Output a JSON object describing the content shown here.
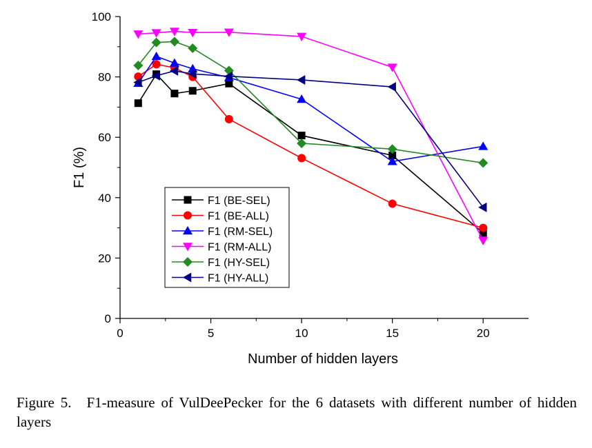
{
  "caption": {
    "label": "Figure 5.",
    "text": "F1-measure of VulDeePecker for the 6 datasets with different number of hidden layers"
  },
  "chart_data": {
    "type": "line",
    "xlabel": "Number of hidden layers",
    "ylabel": "F1 (%)",
    "xlim": [
      0,
      22.5
    ],
    "ylim": [
      0,
      100
    ],
    "xticks": [
      0,
      5,
      10,
      15,
      20
    ],
    "yticks": [
      0,
      20,
      40,
      60,
      80,
      100
    ],
    "x": [
      1,
      2,
      3,
      4,
      6,
      10,
      15,
      20
    ],
    "legend_position": "lower-left",
    "series": [
      {
        "name": "F1 (BE-SEL)",
        "color": "#000000",
        "marker": "square",
        "values": [
          71.3,
          80.9,
          74.5,
          75.4,
          77.8,
          60.6,
          54.0,
          28.3
        ]
      },
      {
        "name": "F1 (BE-ALL)",
        "color": "#ff0000",
        "marker": "circle",
        "values": [
          80.1,
          84.2,
          83.0,
          80.0,
          66.0,
          53.1,
          38.0,
          30.0
        ]
      },
      {
        "name": "F1 (RM-SEL)",
        "color": "#0000ff",
        "marker": "triangle-up",
        "values": [
          77.9,
          86.8,
          84.6,
          82.7,
          79.8,
          72.6,
          52.0,
          57.0
        ]
      },
      {
        "name": "F1 (RM-ALL)",
        "color": "#ff00ff",
        "marker": "triangle-down",
        "values": [
          94.2,
          94.6,
          95.1,
          94.7,
          94.8,
          93.4,
          83.2,
          25.8
        ]
      },
      {
        "name": "F1 (HY-SEL)",
        "color": "#228b22",
        "marker": "diamond",
        "values": [
          83.8,
          91.4,
          91.7,
          89.5,
          82.1,
          58.0,
          56.1,
          51.5
        ]
      },
      {
        "name": "F1 (HY-ALL)",
        "color": "#000080",
        "marker": "triangle-left",
        "values": [
          78.2,
          80.4,
          82.0,
          81.0,
          80.2,
          79.0,
          76.7,
          36.8
        ]
      }
    ]
  }
}
